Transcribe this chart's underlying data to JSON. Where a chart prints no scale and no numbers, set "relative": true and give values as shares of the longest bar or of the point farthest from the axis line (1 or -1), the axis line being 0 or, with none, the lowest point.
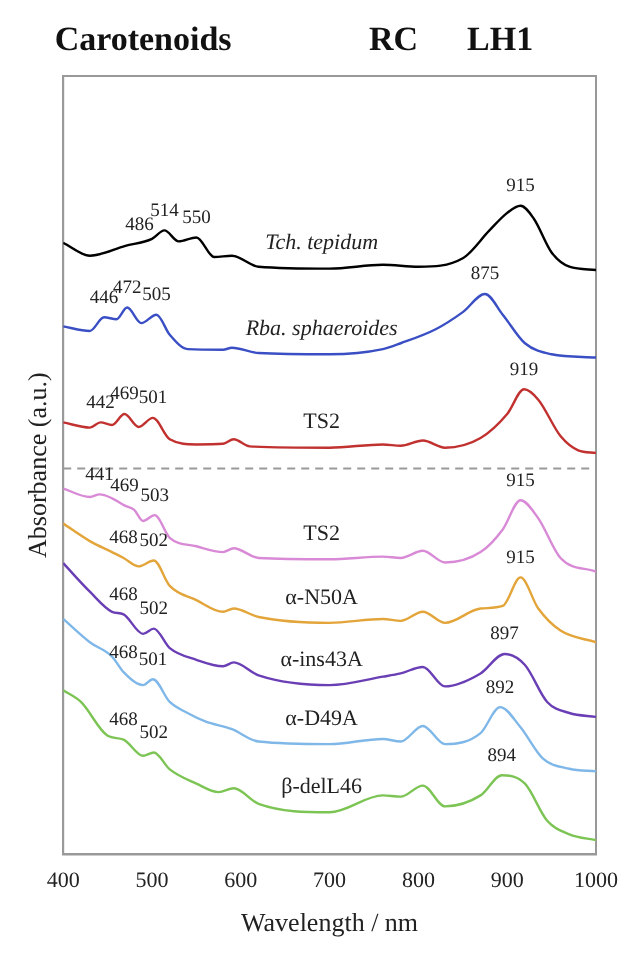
{
  "chart_data": {
    "type": "line",
    "relative": true,
    "xlabel": "Wavelength / nm",
    "ylabel": "Absorbance (a.u.)",
    "xlim": [
      400,
      1000
    ],
    "xticks": [
      400,
      500,
      600,
      700,
      800,
      900,
      1000
    ],
    "grid": false,
    "legend": false,
    "tick_labels": "x",
    "marker": "none",
    "line_style": "solid",
    "series": [
      {
        "name": "Tch. tepidum",
        "color": "#000000",
        "x": [
          400,
          430,
          470,
          500,
          514,
          530,
          550,
          570,
          590,
          620,
          700,
          760,
          800,
          850,
          880,
          900,
          915,
          930,
          950,
          970,
          1000
        ],
        "values": [
          0.943,
          0.923,
          0.938,
          0.949,
          0.962,
          0.945,
          0.951,
          0.921,
          0.923,
          0.906,
          0.903,
          0.909,
          0.906,
          0.919,
          0.962,
          0.989,
          1.0,
          0.98,
          0.928,
          0.906,
          0.901
        ]
      },
      {
        "name": "Rba. sphaeroides",
        "color": "#3a4fc4",
        "x": [
          400,
          430,
          446,
          460,
          472,
          488,
          505,
          520,
          540,
          580,
          590,
          620,
          700,
          760,
          780,
          820,
          850,
          875,
          895,
          920,
          950,
          1000
        ],
        "values": [
          0.814,
          0.807,
          0.828,
          0.825,
          0.843,
          0.819,
          0.832,
          0.801,
          0.779,
          0.778,
          0.781,
          0.773,
          0.771,
          0.779,
          0.788,
          0.81,
          0.836,
          0.864,
          0.832,
          0.788,
          0.771,
          0.766
        ]
      },
      {
        "name": "TS2",
        "color": "#c0312f",
        "x": [
          400,
          430,
          442,
          455,
          469,
          485,
          501,
          520,
          550,
          580,
          592,
          610,
          700,
          760,
          780,
          805,
          830,
          870,
          900,
          919,
          935,
          960,
          980,
          1000
        ],
        "values": [
          0.666,
          0.658,
          0.666,
          0.662,
          0.679,
          0.659,
          0.673,
          0.64,
          0.632,
          0.633,
          0.64,
          0.629,
          0.627,
          0.632,
          0.63,
          0.638,
          0.627,
          0.642,
          0.679,
          0.717,
          0.701,
          0.645,
          0.623,
          0.619
        ]
      },
      {
        "name": "TS2",
        "color": "#d98ad6",
        "x": [
          400,
          430,
          441,
          455,
          469,
          480,
          490,
          503,
          520,
          550,
          580,
          592,
          620,
          700,
          760,
          780,
          805,
          830,
          870,
          895,
          915,
          935,
          960,
          1000
        ],
        "values": [
          0.564,
          0.551,
          0.555,
          0.549,
          0.538,
          0.531,
          0.514,
          0.523,
          0.488,
          0.475,
          0.466,
          0.472,
          0.457,
          0.455,
          0.459,
          0.457,
          0.468,
          0.45,
          0.466,
          0.501,
          0.546,
          0.518,
          0.457,
          0.436
        ]
      },
      {
        "name": "α-N50A",
        "color": "#e3a53a",
        "x": [
          400,
          430,
          455,
          468,
          485,
          502,
          520,
          550,
          580,
          592,
          620,
          700,
          760,
          780,
          805,
          830,
          870,
          895,
          915,
          935,
          960,
          1000
        ],
        "values": [
          0.51,
          0.483,
          0.466,
          0.457,
          0.444,
          0.453,
          0.414,
          0.392,
          0.374,
          0.379,
          0.366,
          0.357,
          0.363,
          0.36,
          0.374,
          0.357,
          0.379,
          0.383,
          0.427,
          0.379,
          0.345,
          0.327
        ]
      },
      {
        "name": "α-ins43A",
        "color": "#6a3fb5",
        "x": [
          400,
          430,
          455,
          468,
          490,
          502,
          520,
          550,
          580,
          592,
          620,
          700,
          760,
          780,
          805,
          830,
          870,
          897,
          920,
          945,
          970,
          1000
        ],
        "values": [
          0.449,
          0.405,
          0.374,
          0.37,
          0.34,
          0.348,
          0.318,
          0.3,
          0.29,
          0.296,
          0.276,
          0.261,
          0.274,
          0.279,
          0.289,
          0.259,
          0.279,
          0.309,
          0.292,
          0.235,
          0.218,
          0.212
        ]
      },
      {
        "name": "α-D49A",
        "color": "#7fb8e8",
        "x": [
          400,
          430,
          455,
          468,
          490,
          501,
          520,
          540,
          560,
          590,
          620,
          700,
          760,
          780,
          805,
          830,
          870,
          892,
          915,
          940,
          970,
          1000
        ],
        "values": [
          0.363,
          0.327,
          0.305,
          0.281,
          0.261,
          0.27,
          0.235,
          0.218,
          0.205,
          0.193,
          0.174,
          0.17,
          0.178,
          0.174,
          0.198,
          0.17,
          0.187,
          0.227,
          0.196,
          0.148,
          0.132,
          0.128
        ]
      },
      {
        "name": "β-delL46",
        "color": "#7cc454",
        "x": [
          400,
          420,
          450,
          468,
          490,
          502,
          520,
          550,
          575,
          592,
          620,
          700,
          760,
          780,
          805,
          830,
          870,
          894,
          920,
          945,
          970,
          1000
        ],
        "values": [
          0.253,
          0.235,
          0.183,
          0.177,
          0.152,
          0.157,
          0.131,
          0.109,
          0.096,
          0.102,
          0.078,
          0.065,
          0.091,
          0.089,
          0.106,
          0.074,
          0.091,
          0.122,
          0.109,
          0.052,
          0.031,
          0.022
        ]
      }
    ],
    "ref_lines": [
      {
        "axis": "y",
        "value": 0.595,
        "color": "#999999",
        "line_style": "dashed"
      }
    ],
    "annotations": [
      "Carotenoids",
      "RC",
      "LH1",
      {
        "text": "486",
        "x": 486,
        "y": 0.94
      },
      {
        "text": "514",
        "x": 514,
        "y": 0.962
      },
      {
        "text": "550",
        "x": 550,
        "y": 0.951
      },
      {
        "text": "915",
        "x": 915,
        "y": 1.0
      },
      {
        "text": "446",
        "x": 446,
        "y": 0.828
      },
      {
        "text": "472",
        "x": 472,
        "y": 0.843
      },
      {
        "text": "505",
        "x": 505,
        "y": 0.832
      },
      {
        "text": "875",
        "x": 875,
        "y": 0.864
      },
      {
        "text": "442",
        "x": 442,
        "y": 0.666
      },
      {
        "text": "469",
        "x": 469,
        "y": 0.679
      },
      {
        "text": "501",
        "x": 501,
        "y": 0.673
      },
      {
        "text": "919",
        "x": 919,
        "y": 0.717
      },
      {
        "text": "441",
        "x": 441,
        "y": 0.555
      },
      {
        "text": "469",
        "x": 469,
        "y": 0.538
      },
      {
        "text": "503",
        "x": 503,
        "y": 0.523
      },
      {
        "text": "915",
        "x": 915,
        "y": 0.546
      },
      {
        "text": "468",
        "x": 468,
        "y": 0.457
      },
      {
        "text": "502",
        "x": 502,
        "y": 0.453
      },
      {
        "text": "915",
        "x": 915,
        "y": 0.427
      },
      {
        "text": "468",
        "x": 468,
        "y": 0.37
      },
      {
        "text": "502",
        "x": 502,
        "y": 0.348
      },
      {
        "text": "897",
        "x": 897,
        "y": 0.309
      },
      {
        "text": "468",
        "x": 468,
        "y": 0.281
      },
      {
        "text": "501",
        "x": 501,
        "y": 0.27
      },
      {
        "text": "892",
        "x": 892,
        "y": 0.227
      },
      {
        "text": "468",
        "x": 468,
        "y": 0.177
      },
      {
        "text": "502",
        "x": 502,
        "y": 0.157
      },
      {
        "text": "894",
        "x": 894,
        "y": 0.122
      }
    ]
  }
}
